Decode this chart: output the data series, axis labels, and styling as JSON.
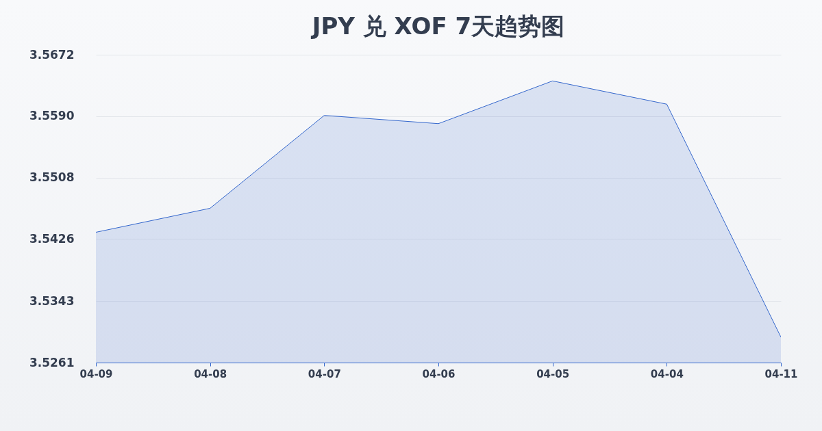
{
  "chart_data": {
    "type": "area",
    "title": "JPY 兑 XOF 7天趋势图",
    "categories": [
      "04-09",
      "04-08",
      "04-07",
      "04-06",
      "04-05",
      "04-04",
      "04-11"
    ],
    "values": [
      3.5435,
      3.5467,
      3.5591,
      3.558,
      3.5637,
      3.5606,
      3.5295
    ],
    "color": "#3366cc",
    "ylim": [
      3.5261,
      3.5672
    ],
    "yticks": [
      3.5261,
      3.5343,
      3.5426,
      3.5508,
      {
        "value": 3.559,
        "label": "3.5590"
      },
      3.5672
    ],
    "grid": "y"
  }
}
